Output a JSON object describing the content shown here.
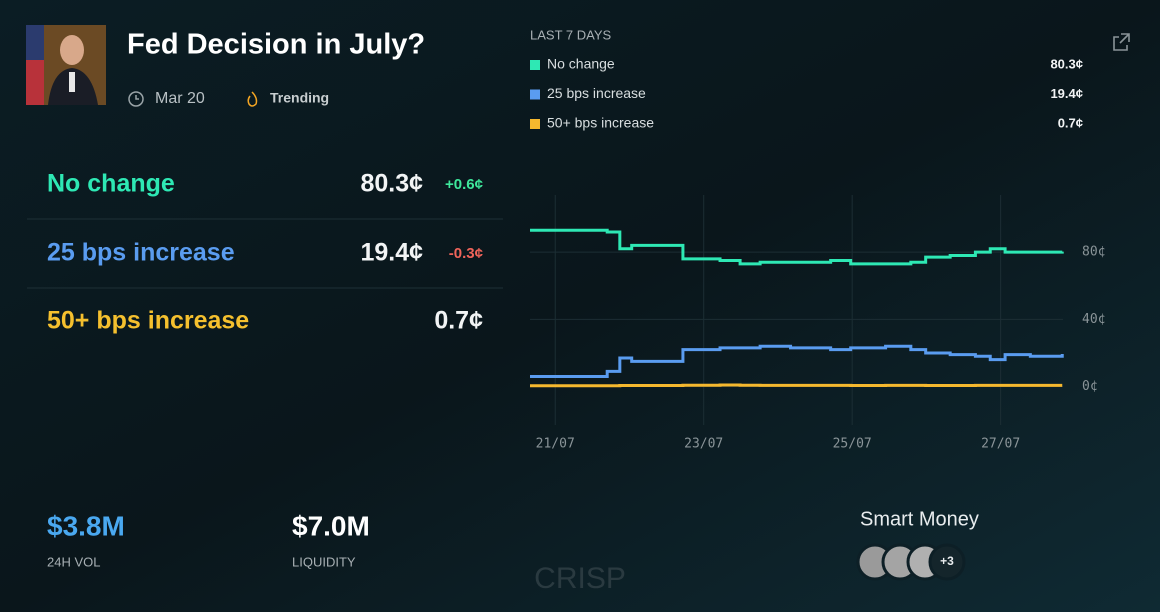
{
  "header": {
    "title": "Fed Decision in July?",
    "date": "Mar 20",
    "tag": "Trending"
  },
  "outcomes": [
    {
      "name": "No change",
      "price": "80.3¢",
      "change": "+0.6¢",
      "color": "#2ee8b4",
      "change_color": "#3ee89c"
    },
    {
      "name": "25 bps increase",
      "price": "19.4¢",
      "change": "-0.3¢",
      "color": "#5a9cf0",
      "change_color": "#f0645a"
    },
    {
      "name": "50+ bps increase",
      "price": "0.7¢",
      "color": "#f5c02e"
    }
  ],
  "stats": [
    {
      "value": "$3.8M",
      "label": "24H VOL",
      "color": "#4aa8f0"
    },
    {
      "value": "$7.0M",
      "label": "LIQUIDITY",
      "color": "#ffffff"
    }
  ],
  "smart_money": {
    "title": "Smart Money",
    "more": "+3"
  },
  "watermark": "CRISP",
  "chart_data": {
    "type": "line",
    "subtitle": "LAST 7 DAYS",
    "step": true,
    "grid": true,
    "x": [
      20.66,
      21.7,
      21.87,
      22.03,
      22.72,
      23.22,
      23.49,
      23.76,
      24.17,
      24.71,
      24.98,
      25.45,
      25.79,
      25.99,
      26.32,
      26.66,
      26.86,
      27.06,
      27.4,
      27.83
    ],
    "xlim": [
      20.66,
      27.84
    ],
    "xticks": [
      {
        "value": 21,
        "label": "21/07"
      },
      {
        "value": 23,
        "label": "23/07"
      },
      {
        "value": 25,
        "label": "25/07"
      },
      {
        "value": 27,
        "label": "27/07"
      }
    ],
    "ylim": [
      -8,
      114
    ],
    "yticks": [
      {
        "value": 0,
        "label": "0¢"
      },
      {
        "value": 40,
        "label": "40¢"
      },
      {
        "value": 80,
        "label": "80¢"
      }
    ],
    "series": [
      {
        "name": "No change",
        "color": "#2ee8b4",
        "last_label": "80.3¢",
        "values": [
          93,
          92,
          82,
          84,
          76,
          75,
          73,
          74,
          74,
          75,
          73,
          73,
          74,
          77,
          78,
          80,
          82,
          80,
          80,
          80.3
        ]
      },
      {
        "name": "25 bps increase",
        "color": "#5a9cf0",
        "last_label": "19.4¢",
        "values": [
          6,
          9,
          17,
          15,
          22,
          23,
          23,
          24,
          23,
          22,
          23,
          24,
          22,
          20,
          19,
          18,
          16,
          19,
          18,
          19.4
        ]
      },
      {
        "name": "50+ bps increase",
        "color": "#f5b82e",
        "last_label": "0.7¢",
        "values": [
          0.5,
          0.5,
          0.6,
          0.6,
          0.8,
          0.9,
          0.8,
          0.7,
          0.7,
          0.7,
          0.6,
          0.7,
          0.7,
          0.6,
          0.6,
          0.7,
          0.7,
          0.7,
          0.7,
          0.7
        ]
      }
    ]
  }
}
